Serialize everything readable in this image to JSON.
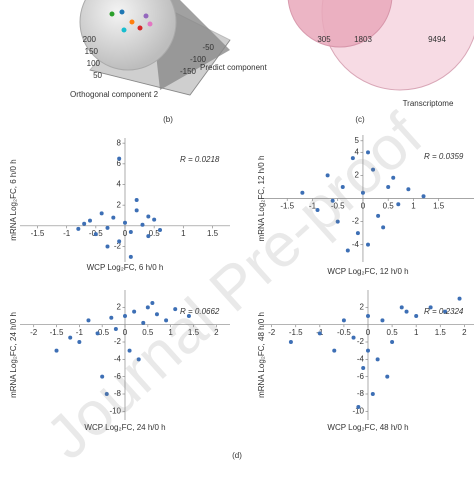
{
  "figure": {
    "pca": {
      "axis_labels": [
        "Orthogonal component 2",
        "Predict component"
      ],
      "ticks": [
        "200",
        "150",
        "100",
        "50",
        "-150",
        "-100",
        "-50"
      ]
    },
    "venn": {
      "values": [
        "305",
        "1803",
        "9494"
      ],
      "label": "Transcriptome"
    },
    "panel_labels": [
      "(b)",
      "(c)",
      "(d)"
    ],
    "watermark": "Journal Pre-proof"
  },
  "chart_data": [
    {
      "type": "scatter",
      "annotation": "R = 0.0218",
      "x_label": "WCP Log₂FC, 6 h/0 h",
      "y_label": "mRNA Log₂FC, 6 h/0 h",
      "color": "#3d6fb5",
      "xlim": [
        -1.8,
        1.8
      ],
      "ylim": [
        -3.5,
        8.5
      ],
      "xticks": [
        -1.5,
        -1,
        -0.5,
        0,
        0.5,
        1,
        1.5
      ],
      "yticks": [
        -2,
        2,
        4,
        6,
        8
      ],
      "x": [
        -0.8,
        -0.6,
        -0.5,
        -0.4,
        -0.3,
        -0.2,
        -0.1,
        0,
        0.1,
        0.2,
        0.3,
        0.4,
        0.5,
        0.6,
        -0.7,
        -0.3,
        0.2,
        0.1,
        -0.1,
        0.4
      ],
      "y": [
        -0.3,
        0.5,
        -0.8,
        1.2,
        -0.2,
        0.8,
        -1.5,
        0.3,
        -0.6,
        1.5,
        0.1,
        -1.0,
        0.6,
        -0.4,
        0.2,
        -2.0,
        2.5,
        -3.0,
        6.5,
        0.9
      ]
    },
    {
      "type": "scatter",
      "annotation": "R = 0.0359",
      "x_label": "WCP Log₂FC, 12 h/0 h",
      "y_label": "mRNA Log₂FC, 12 h/0 h",
      "color": "#3d6fb5",
      "xlim": [
        -2,
        2.2
      ],
      "ylim": [
        -5.5,
        5.5
      ],
      "xticks": [
        -1.5,
        -1,
        -0.5,
        0,
        0.5,
        1,
        1.5
      ],
      "yticks": [
        -4,
        -2,
        2,
        4,
        5
      ],
      "x": [
        -1.2,
        -0.9,
        -0.7,
        -0.5,
        -0.4,
        -0.2,
        -0.1,
        0,
        0.1,
        0.2,
        0.3,
        0.5,
        0.7,
        0.9,
        1.2,
        -0.3,
        0.1,
        0.4,
        -0.6,
        0.6
      ],
      "y": [
        0.5,
        -1,
        2,
        -2,
        1,
        3.5,
        -3,
        0.5,
        -4,
        2.5,
        -1.5,
        1,
        -0.5,
        0.8,
        0.2,
        -4.5,
        4,
        -2.5,
        -0.2,
        1.8
      ]
    },
    {
      "type": "scatter",
      "annotation": "R = 0.0662",
      "x_label": "WCP Log₂FC, 24 h/0 h",
      "y_label": "mRNA Log₂FC, 24 h/0 h",
      "color": "#3d6fb5",
      "xlim": [
        -2.3,
        2.3
      ],
      "ylim": [
        -11,
        4
      ],
      "xticks": [
        -2,
        -1.5,
        -1,
        -0.5,
        0,
        0.5,
        1,
        1.5,
        2
      ],
      "yticks": [
        -10,
        -8,
        -6,
        -4,
        -2,
        2
      ],
      "x": [
        -1.5,
        -1.2,
        -1,
        -0.8,
        -0.6,
        -0.5,
        -0.3,
        -0.2,
        0,
        0.1,
        0.2,
        0.4,
        0.5,
        0.7,
        0.9,
        1.1,
        1.4,
        -0.4,
        0.3,
        0.6
      ],
      "y": [
        -3,
        -1.5,
        -2,
        0.5,
        -1,
        -6,
        0.8,
        -0.5,
        1,
        -3,
        1.5,
        0.2,
        2,
        1.2,
        0.5,
        1.8,
        1,
        -8,
        -4,
        2.5
      ]
    },
    {
      "type": "scatter",
      "annotation": "R = 0.2324",
      "x_label": "WCP Log₂FC, 48 h/0 h",
      "y_label": "mRNA Log₂FC, 48 h/0 h",
      "color": "#3d6fb5",
      "xlim": [
        -2.2,
        2.2
      ],
      "ylim": [
        -11,
        4
      ],
      "xticks": [
        -2,
        -1.5,
        -1,
        -0.5,
        0,
        0.5,
        1,
        1.5,
        2
      ],
      "yticks": [
        -10,
        -8,
        -6,
        -4,
        -2,
        2
      ],
      "x": [
        -1.6,
        -1,
        -0.7,
        -0.5,
        -0.3,
        -0.1,
        0,
        0.1,
        0.3,
        0.5,
        0.8,
        1,
        1.3,
        1.6,
        1.9,
        -0.2,
        0.2,
        0.4,
        0,
        0.7
      ],
      "y": [
        -2,
        -1,
        -3,
        0.5,
        -1.5,
        -5,
        1,
        -8,
        0.5,
        -2,
        1.5,
        1,
        2,
        1.5,
        3,
        -9.5,
        -4,
        -6,
        -3,
        2
      ]
    }
  ]
}
